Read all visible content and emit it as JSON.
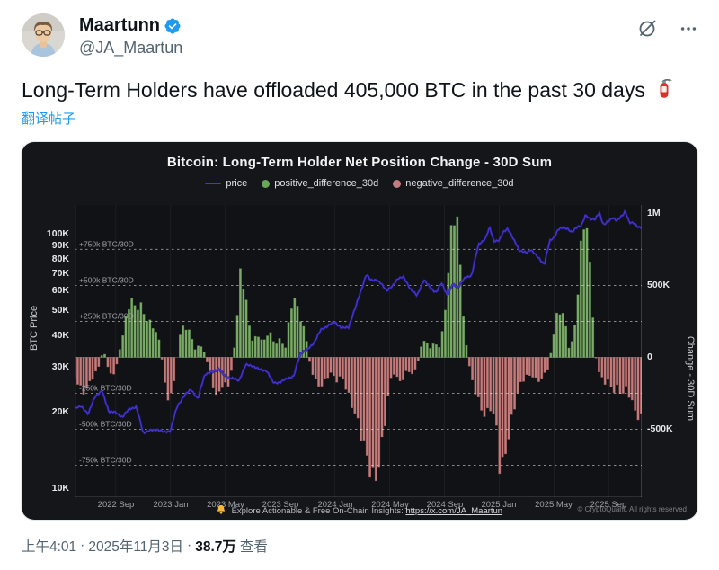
{
  "tweet": {
    "author": "Maartunn",
    "handle": "@JA_Maartun",
    "text": "Long-Term Holders have offloaded 405,000 BTC in the past 30 days",
    "emoji": "🧯",
    "translate_label": "翻译帖子",
    "time": "上午4:01",
    "date": "2025年11月3日",
    "views_count": "38.7万",
    "views_label": "查看",
    "separator": "·"
  },
  "colors": {
    "accent_blue": "#1d9bf0",
    "price_line": "#4636cf",
    "price_line_glow": "#241b8a",
    "positive_bar": "#7cab69",
    "positive_bar_edge": "#4c7a3e",
    "negative_bar": "#c57c7c",
    "negative_bar_edge": "#8e5252",
    "card_bg": "#14161a",
    "plot_bg": "#101216",
    "guide_line": "rgba(255,255,255,0.5)",
    "axis_line_left": "#3b3270",
    "badge_blue": "#1d9bf0"
  },
  "chart_data": {
    "type": "bar+line",
    "title": "Bitcoin: Long-Term Holder Net Position Change - 30D Sum",
    "legend": [
      {
        "label": "price",
        "marker": "line",
        "color": "#4636cf"
      },
      {
        "label": "positive_difference_30d",
        "marker": "dot",
        "color": "#6aa659"
      },
      {
        "label": "negative_difference_30d",
        "marker": "dot",
        "color": "#c57c7c"
      }
    ],
    "left_axis": {
      "label": "BTC Price",
      "scale": "log",
      "ylim_usd": [
        9200,
        130000
      ],
      "ticks": [
        {
          "label": "100K",
          "value": 100000
        },
        {
          "label": "90K",
          "value": 90000
        },
        {
          "label": "80K",
          "value": 80000
        },
        {
          "label": "70K",
          "value": 70000
        },
        {
          "label": "60K",
          "value": 60000
        },
        {
          "label": "50K",
          "value": 50000
        },
        {
          "label": "40K",
          "value": 40000
        },
        {
          "label": "30K",
          "value": 30000
        },
        {
          "label": "20K",
          "value": 20000
        },
        {
          "label": "10K",
          "value": 10000
        }
      ]
    },
    "right_axis": {
      "label": "Change - 30D Sum",
      "scale": "linear",
      "ylim_k": [
        -972,
        1059
      ],
      "ticks": [
        {
          "label": "1M",
          "value_k": 1000
        },
        {
          "label": "500K",
          "value_k": 500
        },
        {
          "label": "0",
          "value_k": 0
        },
        {
          "label": "-500K",
          "value_k": -500
        }
      ]
    },
    "guide_lines": [
      {
        "label": "+750k BTC/30D",
        "value_k": 750
      },
      {
        "label": "+500k BTC/30D",
        "value_k": 500
      },
      {
        "label": "+250k BTC/30D",
        "value_k": 250
      },
      {
        "label": "-250k BTC/30D",
        "value_k": -250
      },
      {
        "label": "-500k BTC/30D",
        "value_k": -500
      },
      {
        "label": "-750k BTC/30D",
        "value_k": -750
      }
    ],
    "x_epoch": "months since 2022-06",
    "x_domain_months": [
      0,
      41.4
    ],
    "x_ticks": [
      {
        "label": "2022 Sep",
        "month": 3
      },
      {
        "label": "2023 Jan",
        "month": 7
      },
      {
        "label": "2023 May",
        "month": 11
      },
      {
        "label": "2023 Sep",
        "month": 15
      },
      {
        "label": "2024 Jan",
        "month": 19
      },
      {
        "label": "2024 May",
        "month": 23
      },
      {
        "label": "2024 Sep",
        "month": 27
      },
      {
        "label": "2025 Jan",
        "month": 31
      },
      {
        "label": "2025 May",
        "month": 35
      },
      {
        "label": "2025 Sep",
        "month": 39
      }
    ],
    "net_position_change_anchors_kbtc": [
      [
        0,
        -140
      ],
      [
        0.7,
        -240
      ],
      [
        1.3,
        -150
      ],
      [
        1.8,
        -60
      ],
      [
        2.1,
        60
      ],
      [
        2.5,
        -90
      ],
      [
        2.9,
        -130
      ],
      [
        3.3,
        60
      ],
      [
        3.8,
        300
      ],
      [
        4.1,
        410
      ],
      [
        4.4,
        330
      ],
      [
        4.8,
        360
      ],
      [
        5.2,
        290
      ],
      [
        5.8,
        210
      ],
      [
        6.2,
        100
      ],
      [
        6.5,
        -90
      ],
      [
        6.8,
        -300
      ],
      [
        7.1,
        -270
      ],
      [
        7.4,
        -60
      ],
      [
        7.7,
        160
      ],
      [
        8.0,
        215
      ],
      [
        8.4,
        170
      ],
      [
        8.8,
        60
      ],
      [
        9.2,
        90
      ],
      [
        9.5,
        30
      ],
      [
        9.8,
        -70
      ],
      [
        10.2,
        -230
      ],
      [
        10.6,
        -255
      ],
      [
        10.9,
        -160
      ],
      [
        11.2,
        -235
      ],
      [
        11.5,
        -50
      ],
      [
        11.8,
        180
      ],
      [
        12.1,
        560
      ],
      [
        12.4,
        470
      ],
      [
        12.7,
        250
      ],
      [
        13.0,
        120
      ],
      [
        13.4,
        160
      ],
      [
        13.8,
        100
      ],
      [
        14.2,
        180
      ],
      [
        14.6,
        90
      ],
      [
        15.0,
        130
      ],
      [
        15.4,
        70
      ],
      [
        15.8,
        350
      ],
      [
        16.1,
        385
      ],
      [
        16.5,
        270
      ],
      [
        16.9,
        150
      ],
      [
        17.2,
        -60
      ],
      [
        17.5,
        -150
      ],
      [
        17.9,
        -200
      ],
      [
        18.3,
        -150
      ],
      [
        18.7,
        -110
      ],
      [
        19.1,
        -170
      ],
      [
        19.5,
        -130
      ],
      [
        20.0,
        -250
      ],
      [
        20.5,
        -400
      ],
      [
        21.0,
        -600
      ],
      [
        21.5,
        -750
      ],
      [
        21.9,
        -815
      ],
      [
        22.3,
        -700
      ],
      [
        22.6,
        -500
      ],
      [
        22.9,
        -280
      ],
      [
        23.2,
        -90
      ],
      [
        23.5,
        -140
      ],
      [
        23.9,
        -160
      ],
      [
        24.3,
        -80
      ],
      [
        24.7,
        -130
      ],
      [
        25.0,
        -60
      ],
      [
        25.3,
        80
      ],
      [
        25.6,
        120
      ],
      [
        25.9,
        60
      ],
      [
        26.3,
        100
      ],
      [
        26.6,
        70
      ],
      [
        26.9,
        200
      ],
      [
        27.2,
        500
      ],
      [
        27.5,
        830
      ],
      [
        27.7,
        960
      ],
      [
        28.0,
        880
      ],
      [
        28.3,
        400
      ],
      [
        28.6,
        80
      ],
      [
        28.9,
        -120
      ],
      [
        29.2,
        -220
      ],
      [
        29.6,
        -320
      ],
      [
        30.0,
        -400
      ],
      [
        30.4,
        -350
      ],
      [
        30.8,
        -520
      ],
      [
        31.0,
        -760
      ],
      [
        31.3,
        -730
      ],
      [
        31.6,
        -550
      ],
      [
        32.0,
        -380
      ],
      [
        32.5,
        -200
      ],
      [
        33.0,
        -130
      ],
      [
        33.4,
        -120
      ],
      [
        33.8,
        -160
      ],
      [
        34.2,
        -140
      ],
      [
        34.6,
        -70
      ],
      [
        34.9,
        120
      ],
      [
        35.2,
        280
      ],
      [
        35.5,
        320
      ],
      [
        35.8,
        240
      ],
      [
        36.1,
        60
      ],
      [
        36.4,
        130
      ],
      [
        36.7,
        420
      ],
      [
        37.0,
        800
      ],
      [
        37.2,
        950
      ],
      [
        37.5,
        780
      ],
      [
        37.8,
        350
      ],
      [
        38.1,
        -60
      ],
      [
        38.4,
        -140
      ],
      [
        38.7,
        -180
      ],
      [
        39.0,
        -160
      ],
      [
        39.3,
        -230
      ],
      [
        39.6,
        -200
      ],
      [
        40.0,
        -260
      ],
      [
        40.3,
        -220
      ],
      [
        40.6,
        -300
      ],
      [
        40.9,
        -370
      ],
      [
        41.3,
        -405
      ]
    ],
    "btc_price_anchors_kusd": [
      [
        0,
        20.5
      ],
      [
        0.5,
        21
      ],
      [
        1,
        19.5
      ],
      [
        1.5,
        23
      ],
      [
        2,
        24
      ],
      [
        2.5,
        20
      ],
      [
        3,
        19.8
      ],
      [
        3.5,
        19
      ],
      [
        4,
        20.5
      ],
      [
        4.5,
        20.8
      ],
      [
        5,
        16.5
      ],
      [
        5.5,
        16.8
      ],
      [
        6,
        17
      ],
      [
        6.5,
        16.6
      ],
      [
        7,
        16.8
      ],
      [
        7.5,
        21
      ],
      [
        8,
        23
      ],
      [
        8.5,
        24.5
      ],
      [
        9,
        22.3
      ],
      [
        9.5,
        28
      ],
      [
        10,
        28.5
      ],
      [
        10.5,
        29.5
      ],
      [
        11,
        27.5
      ],
      [
        11.5,
        27
      ],
      [
        12,
        26.5
      ],
      [
        12.5,
        30.5
      ],
      [
        13,
        30.3
      ],
      [
        13.5,
        29.2
      ],
      [
        14,
        29
      ],
      [
        14.5,
        26
      ],
      [
        15,
        26
      ],
      [
        15.5,
        27
      ],
      [
        16,
        27.5
      ],
      [
        16.5,
        34
      ],
      [
        17,
        35
      ],
      [
        17.5,
        37.5
      ],
      [
        18,
        42
      ],
      [
        18.5,
        43.5
      ],
      [
        19,
        45
      ],
      [
        19.5,
        42.5
      ],
      [
        20,
        43
      ],
      [
        20.5,
        51
      ],
      [
        21,
        62
      ],
      [
        21.3,
        69
      ],
      [
        21.6,
        66
      ],
      [
        22,
        66
      ],
      [
        22.4,
        63.5
      ],
      [
        22.8,
        60
      ],
      [
        23.2,
        62
      ],
      [
        23.6,
        67
      ],
      [
        24,
        67.5
      ],
      [
        24.5,
        61
      ],
      [
        25,
        57
      ],
      [
        25.5,
        66
      ],
      [
        26,
        61
      ],
      [
        26.4,
        59
      ],
      [
        26.8,
        64
      ],
      [
        27.2,
        57.5
      ],
      [
        27.6,
        63
      ],
      [
        28,
        62
      ],
      [
        28.5,
        67
      ],
      [
        29,
        69
      ],
      [
        29.5,
        91
      ],
      [
        30,
        96
      ],
      [
        30.3,
        106
      ],
      [
        30.6,
        94
      ],
      [
        31,
        94
      ],
      [
        31.3,
        102
      ],
      [
        31.6,
        105
      ],
      [
        32,
        96
      ],
      [
        32.5,
        86
      ],
      [
        33,
        84
      ],
      [
        33.3,
        87
      ],
      [
        33.7,
        82
      ],
      [
        34,
        79
      ],
      [
        34.3,
        76
      ],
      [
        34.7,
        94
      ],
      [
        35,
        97
      ],
      [
        35.3,
        104
      ],
      [
        35.7,
        106
      ],
      [
        36,
        105
      ],
      [
        36.3,
        101
      ],
      [
        36.7,
        107
      ],
      [
        37,
        108
      ],
      [
        37.3,
        118
      ],
      [
        37.6,
        115
      ],
      [
        38,
        114
      ],
      [
        38.3,
        121
      ],
      [
        38.6,
        109
      ],
      [
        39,
        112
      ],
      [
        39.3,
        116
      ],
      [
        39.6,
        113
      ],
      [
        40,
        118
      ],
      [
        40.2,
        123
      ],
      [
        40.5,
        111
      ],
      [
        40.8,
        110
      ],
      [
        41.1,
        107
      ],
      [
        41.4,
        106
      ]
    ],
    "footer": {
      "bell": "🔔",
      "note": "Explore Actionable & Free On-Chain Insights:",
      "link": "https://x.com/JA_Maartun",
      "copyright": "© CryptoQuant. All rights reserved"
    }
  }
}
